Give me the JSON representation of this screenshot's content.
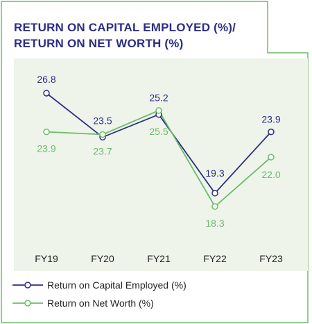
{
  "chart_data": {
    "type": "line",
    "title_lines": [
      "RETURN ON CAPITAL EMPLOYED (%)/",
      "RETURN ON NET WORTH (%)"
    ],
    "categories": [
      "FY19",
      "FY20",
      "FY21",
      "FY22",
      "FY23"
    ],
    "series": [
      {
        "name": "Return on Capital Employed (%)",
        "values": [
          26.8,
          23.5,
          25.2,
          19.3,
          23.9
        ],
        "labels": [
          "26.8",
          "23.5",
          "25.2",
          "19.3",
          "23.9"
        ],
        "color": "#2b2d86"
      },
      {
        "name": "Return on Net Worth (%)",
        "values": [
          23.9,
          23.7,
          25.5,
          18.3,
          22.0
        ],
        "labels": [
          "23.9",
          "23.7",
          "25.5",
          "18.3",
          "22.0"
        ],
        "color": "#6dbb6a"
      }
    ],
    "xlabel": "",
    "ylabel": "",
    "ylim": [
      18.3,
      26.8
    ],
    "grid": false,
    "legend_position": "bottom-left",
    "plot_background": "#eef4ea",
    "frame_color": "#6dbb6a"
  }
}
